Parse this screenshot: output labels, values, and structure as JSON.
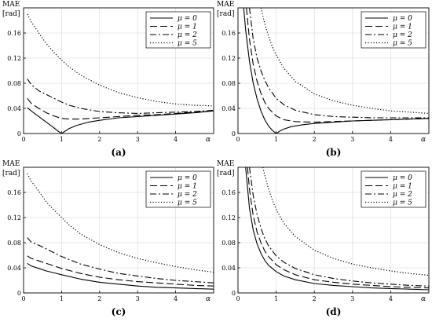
{
  "chart_data": [
    {
      "type": "line",
      "panel_label": "(a)",
      "ylabel": "MAE",
      "yunit": "[rad]",
      "xlabel": "α",
      "xlim": [
        0,
        5
      ],
      "ylim": [
        0,
        0.2
      ],
      "xticks": [
        "0",
        "1",
        "2",
        "3",
        "4"
      ],
      "yticks": [
        "0",
        "0.04",
        "0.08",
        "0.12",
        "0.16"
      ],
      "grid": true,
      "legend_position": "top-right",
      "series": [
        {
          "name": "μ = 0",
          "x": [
            0.1,
            0.2,
            0.4,
            0.6,
            0.8,
            0.9,
            1.0,
            1.1,
            1.2,
            1.4,
            1.7,
            2.0,
            2.5,
            3.0,
            3.5,
            4.0,
            4.5,
            5.0
          ],
          "y": [
            0.041,
            0.036,
            0.027,
            0.018,
            0.009,
            0.004,
            0.0,
            0.004,
            0.008,
            0.013,
            0.018,
            0.021,
            0.025,
            0.027,
            0.029,
            0.031,
            0.033,
            0.036
          ]
        },
        {
          "name": "μ = 1",
          "x": [
            0.1,
            0.2,
            0.4,
            0.6,
            0.8,
            1.0,
            1.2,
            1.5,
            2.0,
            2.5,
            3.0,
            3.5,
            4.0,
            4.5,
            5.0
          ],
          "y": [
            0.056,
            0.048,
            0.04,
            0.033,
            0.028,
            0.024,
            0.023,
            0.023,
            0.025,
            0.027,
            0.029,
            0.03,
            0.032,
            0.034,
            0.036
          ]
        },
        {
          "name": "μ = 2",
          "x": [
            0.1,
            0.2,
            0.4,
            0.6,
            0.8,
            1.0,
            1.2,
            1.5,
            2.0,
            2.5,
            3.0,
            3.5,
            4.0,
            4.5,
            5.0
          ],
          "y": [
            0.087,
            0.078,
            0.068,
            0.062,
            0.056,
            0.05,
            0.045,
            0.04,
            0.035,
            0.033,
            0.032,
            0.033,
            0.034,
            0.035,
            0.037
          ]
        },
        {
          "name": "μ = 5",
          "x": [
            0.1,
            0.2,
            0.4,
            0.6,
            0.8,
            1.0,
            1.2,
            1.5,
            2.0,
            2.5,
            3.0,
            3.5,
            4.0,
            4.5,
            5.0
          ],
          "y": [
            0.19,
            0.178,
            0.16,
            0.143,
            0.129,
            0.117,
            0.106,
            0.093,
            0.077,
            0.065,
            0.057,
            0.051,
            0.047,
            0.045,
            0.044
          ]
        }
      ]
    },
    {
      "type": "line",
      "panel_label": "(b)",
      "ylabel": "MAE",
      "yunit": "[rad]",
      "xlabel": "α",
      "xlim": [
        0,
        5
      ],
      "ylim": [
        0,
        0.2
      ],
      "xticks": [
        "0",
        "1",
        "2",
        "3",
        "4"
      ],
      "yticks": [
        "0",
        "0.04",
        "0.08",
        "0.12",
        "0.16"
      ],
      "grid": true,
      "legend_position": "top-right",
      "series": [
        {
          "name": "μ = 0",
          "x": [
            0.15,
            0.2,
            0.3,
            0.4,
            0.5,
            0.6,
            0.7,
            0.8,
            0.9,
            1.0,
            1.1,
            1.2,
            1.4,
            1.7,
            2.0,
            2.5,
            3.0,
            3.5,
            4.0,
            4.5,
            5.0
          ],
          "y": [
            0.2,
            0.165,
            0.115,
            0.08,
            0.055,
            0.036,
            0.022,
            0.012,
            0.005,
            0.0,
            0.004,
            0.007,
            0.011,
            0.014,
            0.016,
            0.018,
            0.02,
            0.021,
            0.022,
            0.023,
            0.024
          ]
        },
        {
          "name": "μ = 1",
          "x": [
            0.22,
            0.3,
            0.4,
            0.5,
            0.6,
            0.7,
            0.8,
            1.0,
            1.2,
            1.5,
            2.0,
            2.5,
            3.0,
            3.5,
            4.0,
            4.5,
            5.0
          ],
          "y": [
            0.2,
            0.15,
            0.11,
            0.083,
            0.064,
            0.05,
            0.04,
            0.028,
            0.022,
            0.019,
            0.018,
            0.019,
            0.02,
            0.021,
            0.022,
            0.023,
            0.024
          ]
        },
        {
          "name": "μ = 2",
          "x": [
            0.3,
            0.4,
            0.5,
            0.6,
            0.7,
            0.8,
            1.0,
            1.2,
            1.5,
            2.0,
            2.5,
            3.0,
            3.5,
            4.0,
            4.5,
            5.0
          ],
          "y": [
            0.2,
            0.15,
            0.12,
            0.1,
            0.085,
            0.073,
            0.056,
            0.046,
            0.037,
            0.03,
            0.027,
            0.026,
            0.025,
            0.025,
            0.025,
            0.025
          ]
        },
        {
          "name": "μ = 5",
          "x": [
            0.6,
            0.7,
            0.8,
            0.9,
            1.0,
            1.2,
            1.5,
            2.0,
            2.5,
            3.0,
            3.5,
            4.0,
            4.5,
            5.0
          ],
          "y": [
            0.2,
            0.175,
            0.155,
            0.138,
            0.125,
            0.104,
            0.083,
            0.063,
            0.052,
            0.045,
            0.04,
            0.036,
            0.034,
            0.032
          ]
        }
      ]
    },
    {
      "type": "line",
      "panel_label": "(c)",
      "ylabel": "MAE",
      "yunit": "[rad]",
      "xlabel": "α",
      "xlim": [
        0,
        5
      ],
      "ylim": [
        0,
        0.2
      ],
      "xticks": [
        "0",
        "1",
        "2",
        "3",
        "4"
      ],
      "yticks": [
        "0",
        "0.04",
        "0.08",
        "0.12",
        "0.16"
      ],
      "grid": true,
      "legend_position": "top-right",
      "series": [
        {
          "name": "μ = 0",
          "x": [
            0.1,
            0.2,
            0.4,
            0.6,
            0.8,
            1.0,
            1.5,
            2.0,
            2.5,
            3.0,
            3.5,
            4.0,
            4.5,
            5.0
          ],
          "y": [
            0.047,
            0.043,
            0.039,
            0.035,
            0.032,
            0.029,
            0.022,
            0.017,
            0.014,
            0.011,
            0.009,
            0.008,
            0.007,
            0.006
          ]
        },
        {
          "name": "μ = 1",
          "x": [
            0.1,
            0.2,
            0.4,
            0.6,
            0.8,
            1.0,
            1.5,
            2.0,
            2.5,
            3.0,
            3.5,
            4.0,
            4.5,
            5.0
          ],
          "y": [
            0.059,
            0.055,
            0.051,
            0.047,
            0.043,
            0.039,
            0.031,
            0.025,
            0.021,
            0.018,
            0.016,
            0.014,
            0.012,
            0.011
          ]
        },
        {
          "name": "μ = 2",
          "x": [
            0.1,
            0.2,
            0.4,
            0.6,
            0.8,
            1.0,
            1.5,
            2.0,
            2.5,
            3.0,
            3.5,
            4.0,
            4.5,
            5.0
          ],
          "y": [
            0.088,
            0.081,
            0.076,
            0.07,
            0.064,
            0.058,
            0.046,
            0.038,
            0.031,
            0.027,
            0.023,
            0.02,
            0.018,
            0.016
          ]
        },
        {
          "name": "μ = 5",
          "x": [
            0.1,
            0.2,
            0.4,
            0.6,
            0.8,
            1.0,
            1.2,
            1.5,
            2.0,
            2.5,
            3.0,
            3.5,
            4.0,
            4.5,
            5.0
          ],
          "y": [
            0.19,
            0.178,
            0.162,
            0.145,
            0.132,
            0.12,
            0.108,
            0.094,
            0.077,
            0.064,
            0.055,
            0.048,
            0.042,
            0.037,
            0.033
          ]
        }
      ]
    },
    {
      "type": "line",
      "panel_label": "(d)",
      "ylabel": "MAE",
      "yunit": "[rad]",
      "xlabel": "α",
      "xlim": [
        0,
        5
      ],
      "ylim": [
        0,
        0.2
      ],
      "xticks": [
        "0",
        "1",
        "2",
        "3",
        "4"
      ],
      "yticks": [
        "0",
        "0.04",
        "0.08",
        "0.12",
        "0.16"
      ],
      "grid": true,
      "legend_position": "top-right",
      "series": [
        {
          "name": "μ = 0",
          "x": [
            0.2,
            0.3,
            0.4,
            0.5,
            0.6,
            0.7,
            0.8,
            1.0,
            1.2,
            1.5,
            2.0,
            2.5,
            3.0,
            3.5,
            4.0,
            4.5,
            5.0
          ],
          "y": [
            0.2,
            0.135,
            0.1,
            0.078,
            0.063,
            0.052,
            0.044,
            0.034,
            0.027,
            0.021,
            0.015,
            0.012,
            0.01,
            0.008,
            0.007,
            0.006,
            0.005
          ]
        },
        {
          "name": "μ = 1",
          "x": [
            0.25,
            0.3,
            0.4,
            0.5,
            0.6,
            0.7,
            0.8,
            1.0,
            1.2,
            1.5,
            2.0,
            2.5,
            3.0,
            3.5,
            4.0,
            4.5,
            5.0
          ],
          "y": [
            0.2,
            0.165,
            0.123,
            0.097,
            0.08,
            0.067,
            0.058,
            0.045,
            0.037,
            0.029,
            0.021,
            0.017,
            0.014,
            0.012,
            0.01,
            0.009,
            0.008
          ]
        },
        {
          "name": "μ = 2",
          "x": [
            0.3,
            0.4,
            0.5,
            0.6,
            0.7,
            0.8,
            1.0,
            1.2,
            1.5,
            2.0,
            2.5,
            3.0,
            3.5,
            4.0,
            4.5,
            5.0
          ],
          "y": [
            0.2,
            0.155,
            0.125,
            0.103,
            0.087,
            0.075,
            0.059,
            0.049,
            0.039,
            0.029,
            0.023,
            0.019,
            0.016,
            0.014,
            0.012,
            0.011
          ]
        },
        {
          "name": "μ = 5",
          "x": [
            0.65,
            0.7,
            0.8,
            0.9,
            1.0,
            1.2,
            1.5,
            2.0,
            2.5,
            3.0,
            3.5,
            4.0,
            4.5,
            5.0
          ],
          "y": [
            0.2,
            0.188,
            0.165,
            0.148,
            0.133,
            0.111,
            0.09,
            0.068,
            0.055,
            0.046,
            0.04,
            0.035,
            0.031,
            0.028
          ]
        }
      ]
    }
  ]
}
